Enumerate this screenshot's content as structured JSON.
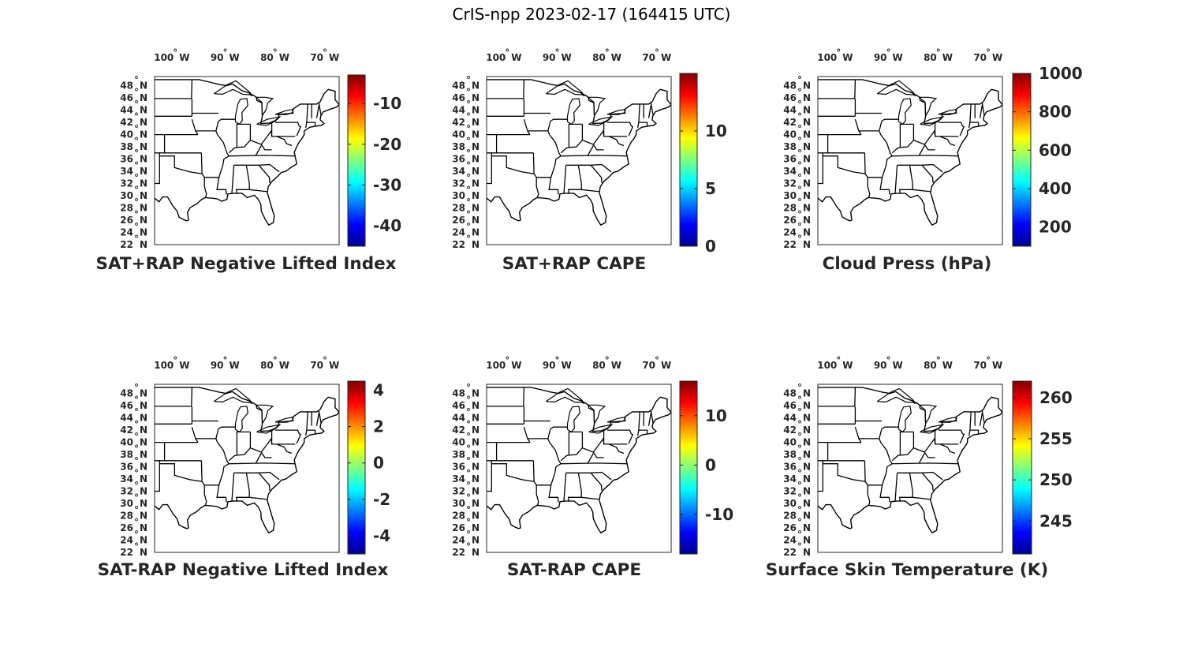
{
  "title": "CrIS-npp 2023-02-17 (164415 UTC)",
  "map": {
    "lon_ticks": [
      "100",
      "90",
      "80",
      "70"
    ],
    "lon_hemisphere": "W",
    "lat_ticks": [
      "48",
      "46",
      "44",
      "42",
      "40",
      "38",
      "36",
      "34",
      "32",
      "30",
      "28",
      "26",
      "24",
      "22"
    ],
    "lat_hemisphere": "N",
    "degree_symbol": "°",
    "lon_range": [
      -104,
      -67
    ],
    "lat_range": [
      22,
      49.5
    ],
    "line_color": "#000000"
  },
  "colormap": [
    "#00008f",
    "#0000ff",
    "#0080ff",
    "#00ffff",
    "#80ff80",
    "#ffff00",
    "#ff8000",
    "#ff0000",
    "#800000"
  ],
  "chart_data": [
    {
      "type": "heatmap",
      "title": "SAT+RAP Negative Lifted Index",
      "colorbar": {
        "range": [
          -45,
          -3
        ],
        "ticks": [
          -40,
          -30,
          -20,
          -10
        ]
      }
    },
    {
      "type": "heatmap",
      "title": "SAT+RAP CAPE",
      "colorbar": {
        "range": [
          0,
          15
        ],
        "ticks": [
          0,
          5,
          10
        ]
      }
    },
    {
      "type": "heatmap",
      "title": "Cloud Press (hPa)",
      "colorbar": {
        "range": [
          100,
          1000
        ],
        "ticks": [
          200,
          400,
          600,
          800,
          1000
        ]
      }
    },
    {
      "type": "heatmap",
      "title": "SAT-RAP Negative Lifted Index",
      "colorbar": {
        "range": [
          -5,
          4.5
        ],
        "ticks": [
          -4,
          -2,
          0,
          2,
          4
        ]
      }
    },
    {
      "type": "heatmap",
      "title": "SAT-RAP CAPE",
      "colorbar": {
        "range": [
          -18,
          17
        ],
        "ticks": [
          -10,
          0,
          10
        ]
      }
    },
    {
      "type": "heatmap",
      "title": "Surface Skin Temperature (K)",
      "colorbar": {
        "range": [
          241,
          262
        ],
        "ticks": [
          245,
          250,
          255,
          260
        ]
      }
    }
  ]
}
